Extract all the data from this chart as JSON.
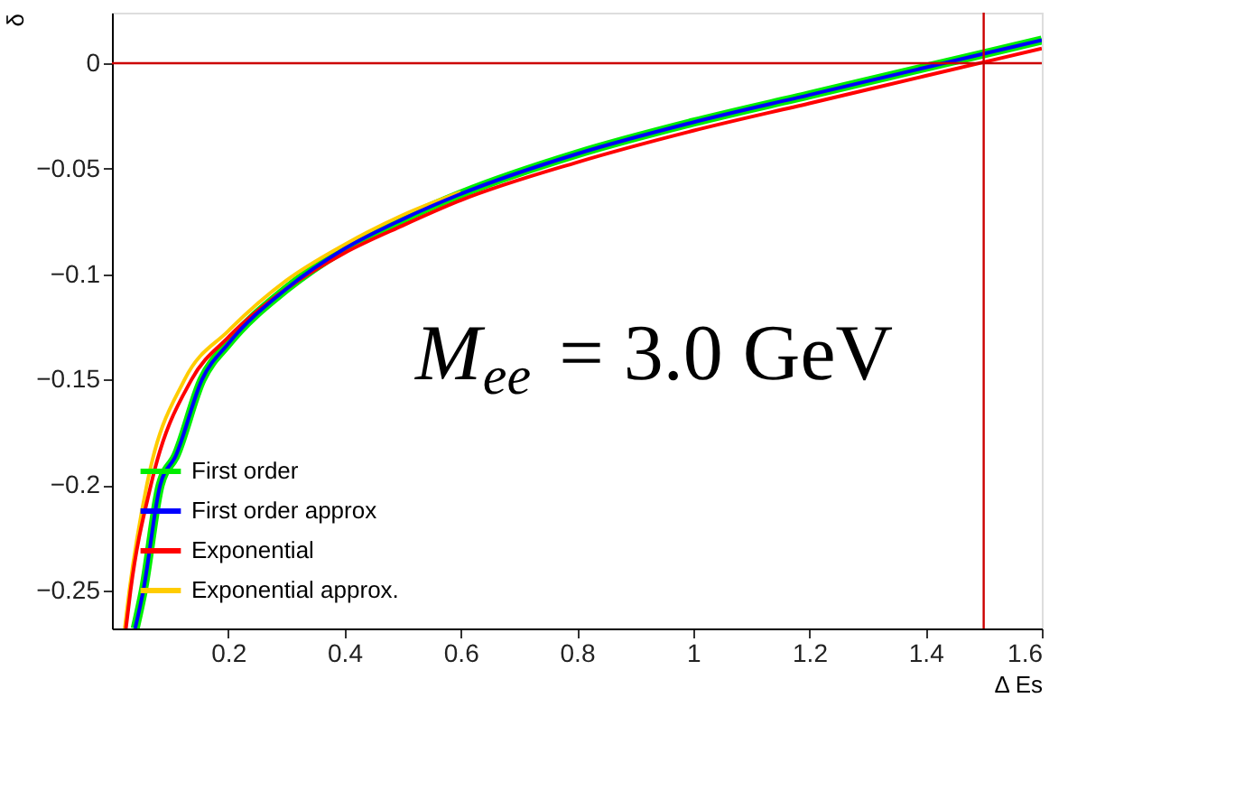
{
  "chart_data": {
    "type": "line",
    "xlabel": "Δ Es",
    "ylabel": "δ",
    "xlim": [
      0,
      1.6
    ],
    "ylim": [
      -0.268,
      0.024
    ],
    "xticks": [
      {
        "value": 0.2,
        "label": "0.2"
      },
      {
        "value": 0.4,
        "label": "0.4"
      },
      {
        "value": 0.6,
        "label": "0.6"
      },
      {
        "value": 0.8,
        "label": "0.8"
      },
      {
        "value": 1,
        "label": "1"
      },
      {
        "value": 1.2,
        "label": "1.2"
      },
      {
        "value": 1.4,
        "label": "1.4"
      },
      {
        "value": 1.6,
        "label": "1.6"
      }
    ],
    "yticks": [
      {
        "value": -0.25,
        "label": "−0.25"
      },
      {
        "value": -0.2,
        "label": "−0.2"
      },
      {
        "value": -0.15,
        "label": "−0.15"
      },
      {
        "value": -0.1,
        "label": "−0.1"
      },
      {
        "value": -0.05,
        "label": "−0.05"
      },
      {
        "value": 0,
        "label": "0"
      }
    ],
    "grid": false,
    "legend": "bottom left",
    "line_style": "solid",
    "marker": "none",
    "series": [
      {
        "name": "First order",
        "color": "#00ee00",
        "x": [
          0.04,
          0.054,
          0.083,
          0.11,
          0.155,
          0.2,
          0.3,
          0.4,
          0.5,
          0.6,
          0.8,
          1.0,
          1.2,
          1.4,
          1.6
        ],
        "values": [
          -0.268,
          -0.25,
          -0.2,
          -0.186,
          -0.15,
          -0.133,
          -0.107,
          -0.088,
          -0.074,
          -0.062,
          -0.043,
          -0.028,
          -0.015,
          -0.002,
          0.011
        ]
      },
      {
        "name": "First order approx",
        "color": "#0000ff",
        "x": [
          0.04,
          0.054,
          0.083,
          0.11,
          0.155,
          0.2,
          0.3,
          0.4,
          0.5,
          0.6,
          0.8,
          1.0,
          1.2,
          1.4,
          1.6
        ],
        "values": [
          -0.268,
          -0.25,
          -0.2,
          -0.186,
          -0.15,
          -0.133,
          -0.107,
          -0.088,
          -0.074,
          -0.062,
          -0.043,
          -0.028,
          -0.015,
          -0.002,
          0.011
        ]
      },
      {
        "name": "Exponential",
        "color": "#ff0000",
        "x": [
          0.024,
          0.032,
          0.067,
          0.137,
          0.2,
          0.3,
          0.4,
          0.5,
          0.6,
          0.8,
          1.0,
          1.2,
          1.4,
          1.6
        ],
        "values": [
          -0.268,
          -0.25,
          -0.2,
          -0.15,
          -0.13,
          -0.107,
          -0.09,
          -0.077,
          -0.065,
          -0.047,
          -0.032,
          -0.019,
          -0.006,
          0.007
        ]
      },
      {
        "name": "Exponential approx.",
        "color": "#ffcc00",
        "x": [
          0.022,
          0.03,
          0.06,
          0.125,
          0.2,
          0.3,
          0.4,
          0.5,
          0.6
        ],
        "values": [
          -0.268,
          -0.25,
          -0.2,
          -0.15,
          -0.127,
          -0.103,
          -0.086,
          -0.072,
          -0.061
        ]
      }
    ],
    "ref_lines": [
      {
        "axis": "y",
        "value": 0,
        "color": "#cc0000"
      },
      {
        "axis": "x",
        "value": 1.5,
        "color": "#cc0000"
      }
    ],
    "annotations": [
      "M$_{ee}$ = 3.0 GeV"
    ]
  }
}
